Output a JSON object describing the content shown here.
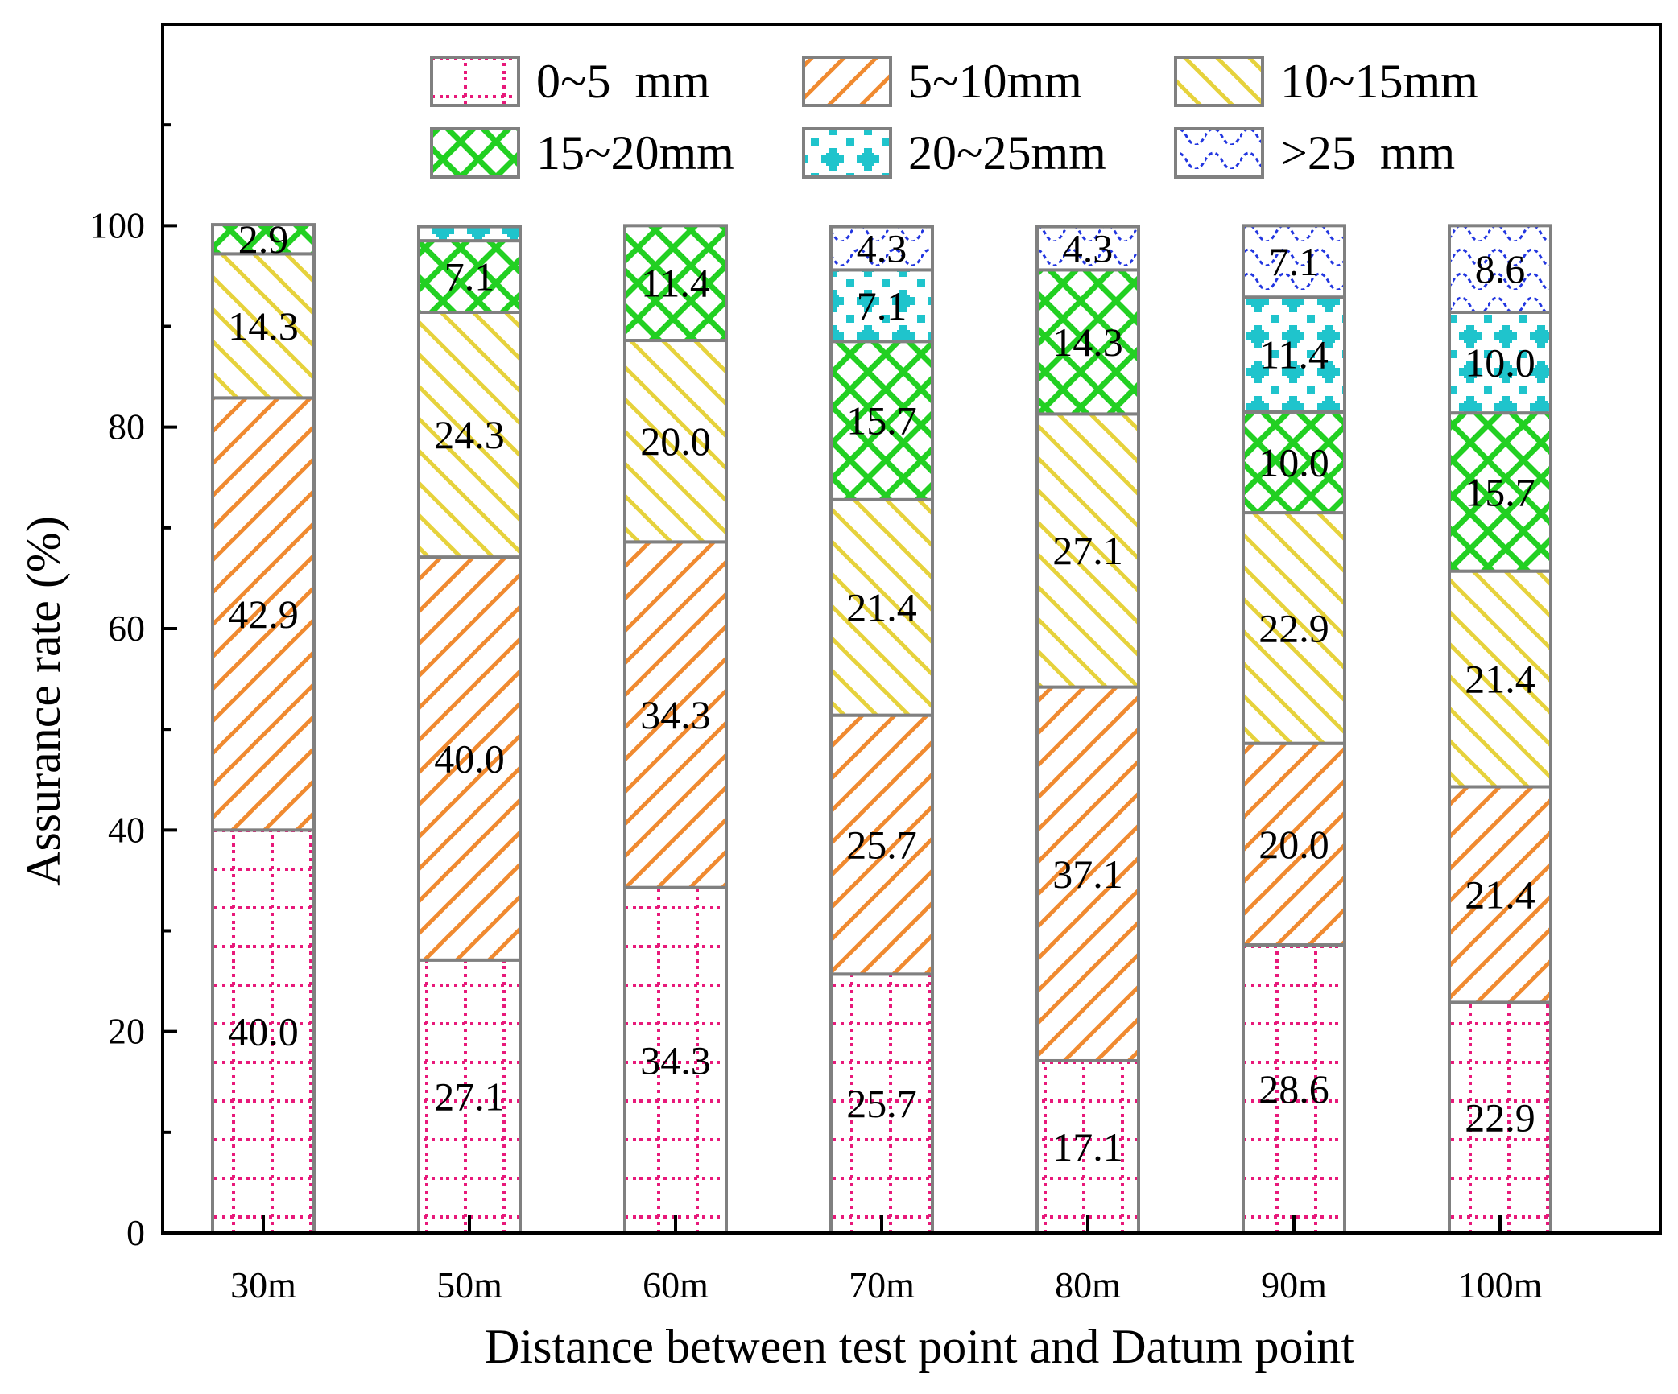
{
  "chart_data": {
    "type": "bar",
    "stacked": true,
    "categories": [
      "30m",
      "50m",
      "60m",
      "70m",
      "80m",
      "90m",
      "100m"
    ],
    "series": [
      {
        "name": "0~5  mm",
        "color": "#e8197a",
        "pattern": "grid-dotted",
        "values": [
          40.0,
          27.1,
          34.3,
          25.7,
          17.1,
          28.6,
          22.9
        ]
      },
      {
        "name": "5~10mm",
        "color": "#f08a30",
        "pattern": "diag-up",
        "values": [
          42.9,
          40.0,
          34.3,
          25.7,
          37.1,
          20.0,
          21.4
        ]
      },
      {
        "name": "10~15mm",
        "color": "#e6d23c",
        "pattern": "diag-down",
        "values": [
          14.3,
          24.3,
          20.0,
          21.4,
          27.1,
          22.9,
          21.4
        ]
      },
      {
        "name": "15~20mm",
        "color": "#22d022",
        "pattern": "crosshatch",
        "values": [
          2.9,
          7.1,
          11.4,
          15.7,
          14.3,
          10.0,
          15.7
        ]
      },
      {
        "name": "20~25mm",
        "color": "#1fc4cc",
        "pattern": "dots",
        "values": [
          0,
          1.4,
          0,
          7.1,
          0,
          11.4,
          10.0
        ]
      },
      {
        "name": ">25  mm",
        "color": "#2236e0",
        "pattern": "waves",
        "values": [
          0,
          0,
          0,
          4.3,
          4.3,
          7.1,
          8.6
        ]
      }
    ],
    "value_labels": [
      [
        "40.0",
        "42.9",
        "14.3",
        "2.9",
        "",
        ""
      ],
      [
        "27.1",
        "40.0",
        "24.3",
        "7.1",
        "",
        ""
      ],
      [
        "34.3",
        "34.3",
        "20.0",
        "11.4",
        "",
        ""
      ],
      [
        "25.7",
        "25.7",
        "21.4",
        "15.7",
        "7.1",
        "4.3"
      ],
      [
        "17.1",
        "37.1",
        "27.1",
        "14.3",
        "",
        "4.3"
      ],
      [
        "28.6",
        "20.0",
        "22.9",
        "10.0",
        "11.4",
        "7.1"
      ],
      [
        "22.9",
        "21.4",
        "21.4",
        "15.7",
        "10.0",
        "8.6"
      ]
    ],
    "xlabel": "Distance between test point and Datum point",
    "ylabel": "Assurance rate (%)",
    "ylim": [
      0,
      120
    ],
    "yticks": [
      0,
      20,
      40,
      60,
      80,
      100
    ],
    "ytick_labels": [
      "0",
      "20",
      "40",
      "60",
      "80",
      "100"
    ],
    "legend_position": "top",
    "grid": false
  }
}
